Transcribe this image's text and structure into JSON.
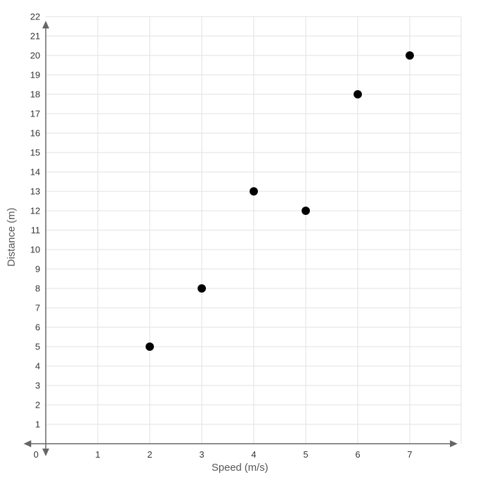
{
  "chart_data": {
    "type": "scatter",
    "title": "",
    "xlabel": "Speed (m/s)",
    "ylabel": "Distance (m)",
    "xlim": [
      0,
      8
    ],
    "ylim": [
      0,
      22
    ],
    "x_ticks": [
      "1",
      "2",
      "3",
      "4",
      "5",
      "6",
      "7"
    ],
    "y_ticks": [
      "1",
      "2",
      "3",
      "4",
      "5",
      "6",
      "7",
      "8",
      "9",
      "10",
      "11",
      "12",
      "13",
      "14",
      "15",
      "16",
      "17",
      "18",
      "19",
      "20",
      "21",
      "22"
    ],
    "origin_label": "0",
    "grid": true,
    "points": [
      {
        "x": 2,
        "y": 5
      },
      {
        "x": 3,
        "y": 8
      },
      {
        "x": 4,
        "y": 13
      },
      {
        "x": 5,
        "y": 12
      },
      {
        "x": 6,
        "y": 18
      },
      {
        "x": 7,
        "y": 20
      }
    ],
    "point_color": "#000000",
    "grid_color": "#e2e2e2",
    "axis_color": "#666666"
  }
}
